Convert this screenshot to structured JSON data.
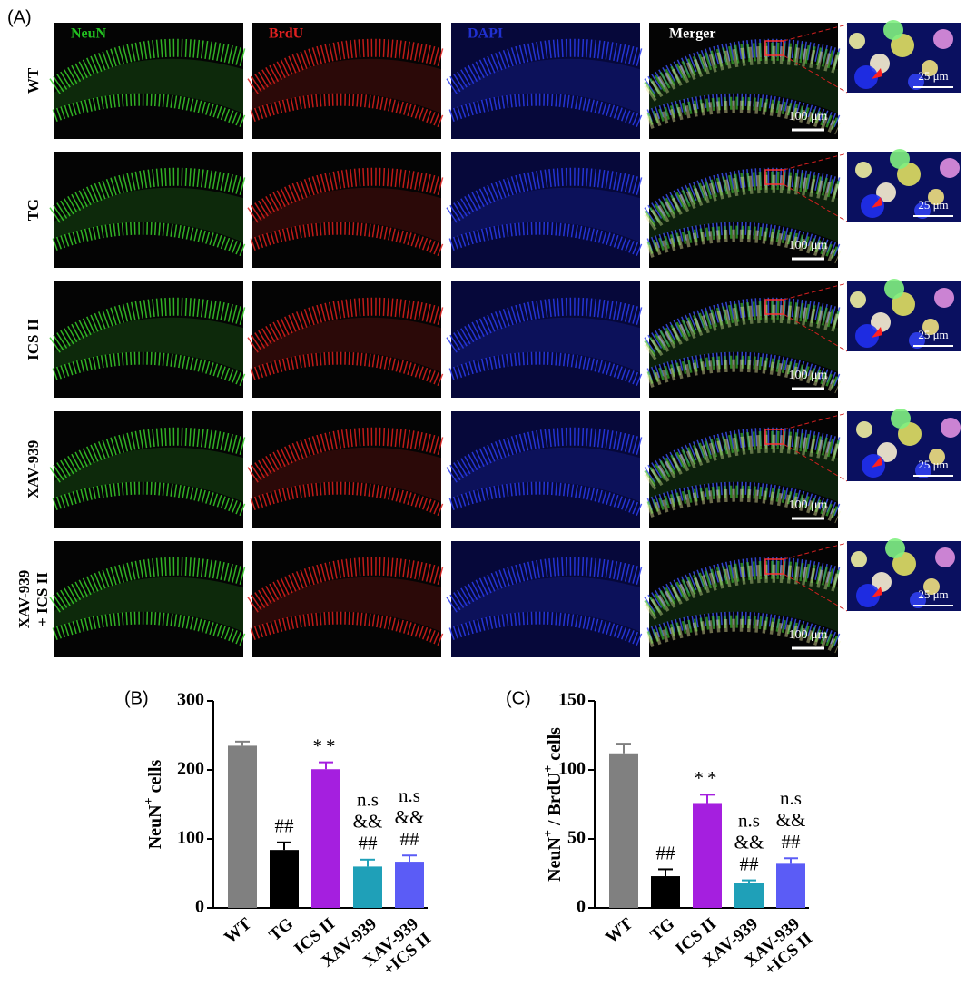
{
  "panel_a": {
    "label": "(A)",
    "columns": [
      "NeuN",
      "BrdU",
      "DAPI",
      "Merger"
    ],
    "rows": [
      [
        "WT"
      ],
      [
        "TG"
      ],
      [
        "ICS II"
      ],
      [
        "XAV-939"
      ],
      [
        "XAV-939",
        "+ ICS II"
      ]
    ],
    "scale_bar_main": "100 μm",
    "scale_bar_inset": "25 μm"
  },
  "chart_data": [
    {
      "type": "bar",
      "panel_label": "(B)",
      "y_label": [
        {
          "text": "NeuN"
        },
        {
          "text": "+",
          "sup": true
        },
        {
          "text": " cells"
        }
      ],
      "categories": [
        [
          "WT"
        ],
        [
          "TG"
        ],
        [
          "ICS II"
        ],
        [
          "XAV-939"
        ],
        [
          "XAV-939",
          "+ICS II"
        ]
      ],
      "values": [
        235,
        84,
        201,
        60,
        67
      ],
      "errors": [
        6,
        11,
        10,
        10,
        9
      ],
      "colors": [
        "#808080",
        "#000000",
        "#a51fdf",
        "#1fa0b8",
        "#5b5cf6"
      ],
      "annotations": [
        null,
        [
          "##"
        ],
        [
          "**"
        ],
        [
          "n.s",
          "&&",
          "##"
        ],
        [
          "n.s",
          "&&",
          "##"
        ]
      ],
      "ylim": [
        0,
        300
      ],
      "yticks": [
        0,
        100,
        200,
        300
      ]
    },
    {
      "type": "bar",
      "panel_label": "(C)",
      "y_label": [
        {
          "text": "NeuN"
        },
        {
          "text": "+",
          "sup": true
        },
        {
          "text": " / BrdU"
        },
        {
          "text": "+",
          "sup": true
        },
        {
          "text": " cells"
        }
      ],
      "categories": [
        [
          "WT"
        ],
        [
          "TG"
        ],
        [
          "ICS II"
        ],
        [
          "XAV-939"
        ],
        [
          "XAV-939",
          "+ICS II"
        ]
      ],
      "values": [
        112,
        23,
        76,
        18,
        32
      ],
      "errors": [
        7,
        5,
        6,
        2,
        4
      ],
      "colors": [
        "#808080",
        "#000000",
        "#a51fdf",
        "#1fa0b8",
        "#5b5cf6"
      ],
      "annotations": [
        null,
        [
          "##"
        ],
        [
          "**"
        ],
        [
          "n.s",
          "&&",
          "##"
        ],
        [
          "n.s",
          "&&",
          "##"
        ]
      ],
      "ylim": [
        0,
        150
      ],
      "yticks": [
        0,
        50,
        100,
        150
      ]
    }
  ]
}
